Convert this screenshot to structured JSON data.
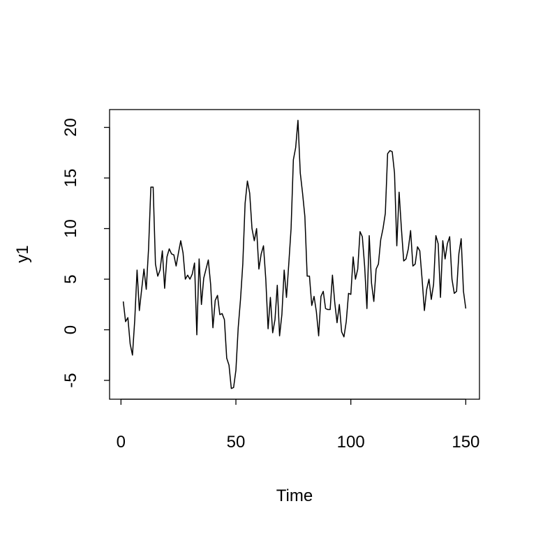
{
  "chart_data": {
    "type": "line",
    "xlabel": "Time",
    "ylabel": "y1",
    "x": [
      1,
      2,
      3,
      4,
      5,
      6,
      7,
      8,
      9,
      10,
      11,
      12,
      13,
      14,
      15,
      16,
      17,
      18,
      19,
      20,
      21,
      22,
      23,
      24,
      25,
      26,
      27,
      28,
      29,
      30,
      31,
      32,
      33,
      34,
      35,
      36,
      37,
      38,
      39,
      40,
      41,
      42,
      43,
      44,
      45,
      46,
      47,
      48,
      49,
      50,
      51,
      52,
      53,
      54,
      55,
      56,
      57,
      58,
      59,
      60,
      61,
      62,
      63,
      64,
      65,
      66,
      67,
      68,
      69,
      70,
      71,
      72,
      73,
      74,
      75,
      76,
      77,
      78,
      79,
      80,
      81,
      82,
      83,
      84,
      85,
      86,
      87,
      88,
      89,
      90,
      91,
      92,
      93,
      94,
      95,
      96,
      97,
      98,
      99,
      100,
      101,
      102,
      103,
      104,
      105,
      106,
      107,
      108,
      109,
      110,
      111,
      112,
      113,
      114,
      115,
      116,
      117,
      118,
      119,
      120,
      121,
      122,
      123,
      124,
      125,
      126,
      127,
      128,
      129,
      130,
      131,
      132,
      133,
      134,
      135,
      136,
      137,
      138,
      139,
      140,
      141,
      142,
      143,
      144,
      145,
      146,
      147,
      148,
      149,
      150
    ],
    "values": [
      2.8,
      0.8,
      1.2,
      -1.4,
      -2.5,
      1.0,
      5.9,
      1.9,
      4.0,
      6.0,
      4.0,
      8.0,
      14.1,
      14.1,
      6.5,
      5.3,
      5.9,
      7.8,
      4.1,
      7.2,
      8.0,
      7.5,
      7.4,
      6.3,
      7.6,
      8.8,
      7.6,
      5.0,
      5.4,
      5.0,
      5.5,
      6.6,
      -0.5,
      7.0,
      2.5,
      5.1,
      6.0,
      6.9,
      4.5,
      0.2,
      2.9,
      3.4,
      1.5,
      1.6,
      1.0,
      -2.8,
      -3.5,
      -5.8,
      -5.7,
      -4.0,
      0.2,
      3.0,
      6.5,
      12.5,
      14.7,
      13.5,
      10.0,
      8.8,
      10.0,
      6.0,
      7.5,
      8.3,
      5.0,
      0.1,
      3.2,
      -0.3,
      1.0,
      4.4,
      -0.6,
      1.5,
      5.9,
      3.2,
      6.5,
      10.0,
      16.8,
      18.0,
      20.7,
      15.5,
      13.5,
      11.2,
      5.3,
      5.3,
      2.4,
      3.3,
      1.8,
      -0.6,
      3.3,
      3.8,
      2.1,
      2.0,
      2.0,
      5.4,
      2.7,
      0.7,
      2.5,
      -0.2,
      -0.7,
      0.8,
      3.6,
      3.5,
      7.2,
      5.0,
      6.0,
      9.7,
      9.2,
      6.3,
      2.1,
      9.3,
      4.6,
      2.8,
      6.0,
      6.5,
      8.9,
      10.0,
      11.5,
      17.4,
      17.7,
      17.6,
      15.5,
      8.3,
      13.6,
      10.0,
      6.8,
      7.0,
      8.0,
      9.8,
      6.3,
      6.5,
      8.2,
      7.8,
      5.0,
      1.9,
      4.0,
      5.0,
      3.0,
      4.5,
      9.3,
      8.5,
      3.2,
      8.8,
      7.0,
      8.5,
      9.2,
      5.0,
      3.6,
      3.8,
      7.5,
      9.0,
      3.8,
      2.1
    ],
    "color": "#000000",
    "xlim": [
      -4.96,
      155.96
    ],
    "xticks": [
      0,
      50,
      100,
      150
    ],
    "ylim": [
      -6.86,
      21.76
    ],
    "yticks": [
      -5,
      0,
      5,
      10,
      15,
      20
    ]
  }
}
